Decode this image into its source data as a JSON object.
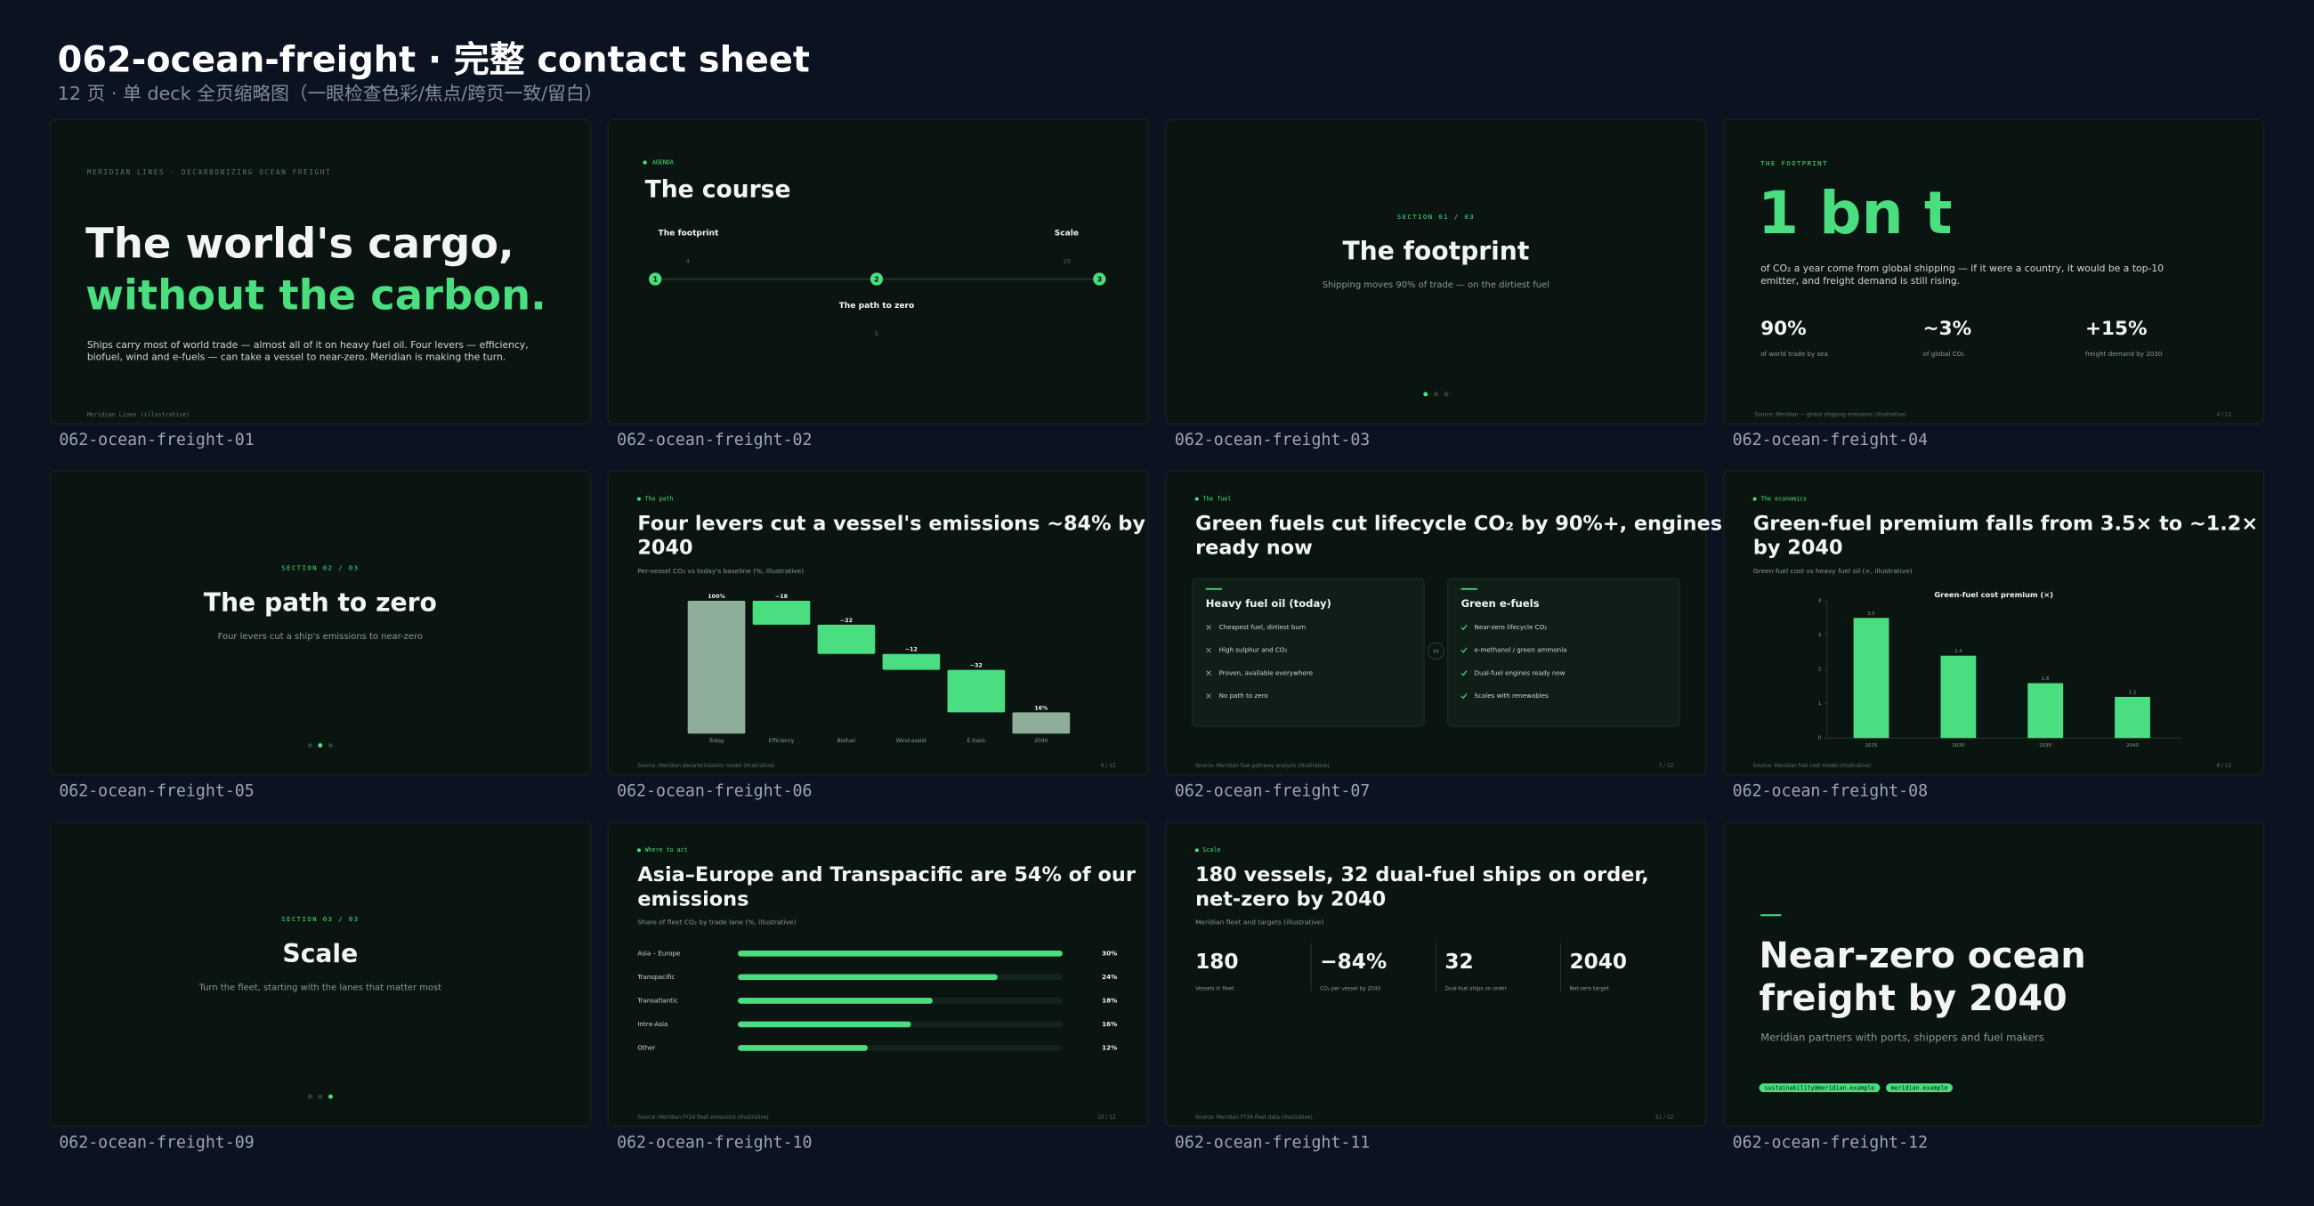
{
  "header": {
    "title": "062-ocean-freight · 完整 contact sheet",
    "subtitle": "12 页 · 单 deck 全页缩略图（一眼检查色彩/焦点/跨页一致/留白）"
  },
  "slides": [
    {
      "label": "062-ocean-freight-01",
      "eyebrow": "MERIDIAN LINES · DECARBONIZING OCEAN FREIGHT",
      "title": "The world's cargo,",
      "title_accent": "without the carbon.",
      "body_lines": [
        "Ships carry most of world trade — almost all of it on heavy fuel oil. Four levers — efficiency,",
        "biofuel, wind and e-fuels — can take a vessel to near-zero. Meridian is making the turn."
      ],
      "footer": "Meridian Lines (illustrative)"
    },
    {
      "label": "062-ocean-freight-02",
      "eyebrow": "AGENDA",
      "title": "The course",
      "steps": [
        {
          "num": "1",
          "title": "The footprint",
          "page": "4"
        },
        {
          "num": "2",
          "title": "The path to zero",
          "page": "5"
        },
        {
          "num": "3",
          "title": "Scale",
          "page": "10"
        }
      ]
    },
    {
      "label": "062-ocean-freight-03",
      "kicker": "SECTION 01 / 03",
      "title": "The footprint",
      "subtitle": "Shipping moves 90% of trade — on the dirtiest fuel"
    },
    {
      "label": "062-ocean-freight-04",
      "eyebrow": "THE FOOTPRINT",
      "big": "1 bn t",
      "body_lines": [
        "of CO₂ a year come from global shipping — if it were a country, it would be a top-10",
        "emitter, and freight demand is still rising."
      ],
      "stats": [
        {
          "value": "90%",
          "label": "of world trade by sea"
        },
        {
          "value": "~3%",
          "label": "of global CO₂"
        },
        {
          "value": "+15%",
          "label": "freight demand by 2030"
        }
      ],
      "footer": "Source: Meridian — global shipping emissions (illustrative)",
      "page": "4 / 12"
    },
    {
      "label": "062-ocean-freight-05",
      "kicker": "SECTION 02 / 03",
      "title": "The path to zero",
      "subtitle": "Four levers cut a ship's emissions to near-zero"
    },
    {
      "label": "062-ocean-freight-06",
      "eyebrow": "The path",
      "title_lines": [
        "Four levers cut a vessel's emissions ~84% by",
        "2040"
      ],
      "subtitle": "Per-vessel CO₂ vs today's baseline (%, illustrative)",
      "waterfall": {
        "categories": [
          "Today",
          "Efficiency",
          "Biofuel",
          "Wind-assist",
          "E-fuels",
          "2040"
        ],
        "values": [
          100,
          -18,
          -22,
          -12,
          -32,
          16
        ],
        "value_labels": [
          "100%",
          "−18",
          "−22",
          "−12",
          "−32",
          "16%"
        ],
        "ylim": [
          0,
          100
        ]
      },
      "footer": "Source: Meridian decarbonization model (illustrative)",
      "page": "6 / 12"
    },
    {
      "label": "062-ocean-freight-07",
      "eyebrow": "The fuel",
      "title_lines": [
        "Green fuels cut lifecycle CO₂ by 90%+, engines",
        "ready now"
      ],
      "cards": [
        {
          "title": "Heavy fuel oil (today)",
          "items": [
            "Cheapest fuel, dirtiest burn",
            "High sulphur and CO₂",
            "Proven, available everywhere",
            "No path to zero"
          ]
        },
        {
          "title": "Green e-fuels",
          "items": [
            "Near-zero lifecycle CO₂",
            "e-methanol / green ammonia",
            "Dual-fuel engines ready now",
            "Scales with renewables"
          ]
        }
      ],
      "vs": "VS",
      "footer": "Source: Meridian fuel pathway analysis (illustrative)",
      "page": "7 / 12"
    },
    {
      "label": "062-ocean-freight-08",
      "eyebrow": "The economics",
      "title_lines": [
        "Green-fuel premium falls from 3.5× to ~1.2×",
        "by 2040"
      ],
      "subtitle": "Green-fuel cost vs heavy fuel oil (×, illustrative)",
      "chart": {
        "type": "bar",
        "title": "Green-fuel cost premium (×)",
        "categories": [
          "2025",
          "2030",
          "2035",
          "2040"
        ],
        "values": [
          3.5,
          2.4,
          1.6,
          1.2
        ],
        "color": "#4ade80",
        "ylim": [
          0,
          4
        ],
        "yticks": [
          0,
          1,
          2,
          3,
          4
        ]
      },
      "footer": "Source: Meridian fuel cost model (illustrative)",
      "page": "8 / 12"
    },
    {
      "label": "062-ocean-freight-09",
      "kicker": "SECTION 03 / 03",
      "title": "Scale",
      "subtitle": "Turn the fleet, starting with the lanes that matter most"
    },
    {
      "label": "062-ocean-freight-10",
      "eyebrow": "Where to act",
      "title_lines": [
        "Asia–Europe and Transpacific are 54% of our",
        "emissions"
      ],
      "subtitle": "Share of fleet CO₂ by trade lane (%, illustrative)",
      "lanes": {
        "categories": [
          "Asia – Europe",
          "Transpacific",
          "Transatlantic",
          "Intra-Asia",
          "Other"
        ],
        "values": [
          30,
          24,
          18,
          16,
          12
        ],
        "value_labels": [
          "30%",
          "24%",
          "18%",
          "16%",
          "12%"
        ],
        "xlim": [
          0,
          30
        ]
      },
      "footer": "Source: Meridian FY24 fleet emissions (illustrative)",
      "page": "10 / 12"
    },
    {
      "label": "062-ocean-freight-11",
      "eyebrow": "Scale",
      "title_lines": [
        "180 vessels, 32 dual-fuel ships on order,",
        "net-zero by 2040"
      ],
      "subtitle": "Meridian fleet and targets (illustrative)",
      "stats": [
        {
          "value": "180",
          "label": "Vessels in fleet"
        },
        {
          "value": "−84%",
          "label": "CO₂ per vessel by 2040"
        },
        {
          "value": "32",
          "label": "Dual-fuel ships on order"
        },
        {
          "value": "2040",
          "label": "Net-zero target"
        }
      ],
      "footer": "Source: Meridian FY24 fleet data (illustrative)",
      "page": "11 / 12"
    },
    {
      "label": "062-ocean-freight-12",
      "title_lines": [
        "Near-zero ocean",
        "freight by 2040"
      ],
      "subtitle": "Meridian partners with ports, shippers and fuel makers",
      "tags": [
        "sustainability@meridian.example",
        "meridian.example"
      ]
    }
  ]
}
